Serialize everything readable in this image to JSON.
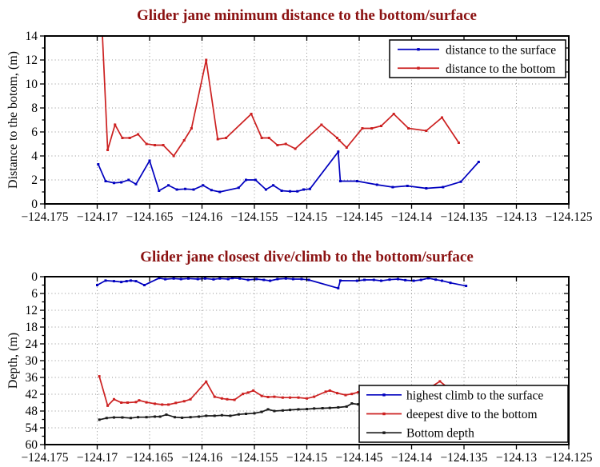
{
  "figure": {
    "background": "#ffffff",
    "title_color": "#8b1212",
    "axis_color": "#000000",
    "grid_color": "#909090"
  },
  "chart_data": [
    {
      "type": "line",
      "title": "Glider jane minimum distance to the bottom/surface",
      "ylabel": "Distance to the botom, (m)",
      "xlim": [
        -124.175,
        -124.125
      ],
      "ylim": [
        0,
        14
      ],
      "y_inverted": false,
      "grid": true,
      "y_minor": 1,
      "x_ticks": [
        -124.175,
        -124.17,
        -124.165,
        -124.16,
        -124.155,
        -124.15,
        -124.145,
        -124.14,
        -124.135,
        -124.13,
        -124.125
      ],
      "x_tick_labels": [
        "−124.175",
        "−124.17",
        "−124.165",
        "−124.16",
        "−124.155",
        "−124.15",
        "−124.145",
        "−124.14",
        "−124.135",
        "−124.13",
        "−124.125"
      ],
      "y_ticks": [
        0,
        2,
        4,
        6,
        8,
        10,
        12,
        14
      ],
      "legend_position": "top-right",
      "series": [
        {
          "name": "distance to the surface",
          "color": "#0000bf",
          "x": [
            -124.1699,
            -124.1692,
            -124.1684,
            -124.1677,
            -124.167,
            -124.1663,
            -124.165,
            -124.1641,
            -124.1632,
            -124.1624,
            -124.1616,
            -124.1608,
            -124.1599,
            -124.1591,
            -124.1583,
            -124.1565,
            -124.1558,
            -124.1549,
            -124.1539,
            -124.1532,
            -124.1524,
            -124.1516,
            -124.1509,
            -124.1503,
            -124.1497,
            -124.147,
            -124.1468,
            -124.1452,
            -124.1433,
            -124.1418,
            -124.1404,
            -124.1386,
            -124.137,
            -124.1353,
            -124.1336
          ],
          "y": [
            3.3,
            1.9,
            1.75,
            1.8,
            2.0,
            1.65,
            3.6,
            1.1,
            1.55,
            1.2,
            1.25,
            1.2,
            1.55,
            1.15,
            1.0,
            1.35,
            2.0,
            2.0,
            1.2,
            1.55,
            1.1,
            1.05,
            1.05,
            1.2,
            1.25,
            4.35,
            1.9,
            1.9,
            1.6,
            1.4,
            1.5,
            1.3,
            1.4,
            1.85,
            3.5
          ]
        },
        {
          "name": "distance to the bottom",
          "color": "#cc2020",
          "x": [
            -124.1696,
            -124.169,
            -124.1683,
            -124.1676,
            -124.1669,
            -124.1661,
            -124.1653,
            -124.1645,
            -124.1637,
            -124.1627,
            -124.1617,
            -124.161,
            -124.1596,
            -124.1585,
            -124.1577,
            -124.1553,
            -124.1543,
            -124.1536,
            -124.1528,
            -124.152,
            -124.1511,
            -124.1486,
            -124.1471,
            -124.1469,
            -124.1462,
            -124.1447,
            -124.1438,
            -124.1429,
            -124.1417,
            -124.1403,
            -124.1386,
            -124.1371,
            -124.1355
          ],
          "y": [
            16.0,
            4.5,
            6.6,
            5.5,
            5.5,
            5.8,
            5.0,
            4.9,
            4.9,
            4.0,
            5.3,
            6.3,
            12.0,
            5.4,
            5.5,
            7.5,
            5.5,
            5.5,
            4.9,
            5.0,
            4.6,
            6.6,
            5.5,
            5.3,
            4.7,
            6.3,
            6.3,
            6.5,
            7.5,
            6.3,
            6.1,
            7.2,
            5.1
          ]
        }
      ]
    },
    {
      "type": "line",
      "title": "Glider jane closest dive/climb to the bottom/surface",
      "ylabel": "Depth, (m)",
      "xlim": [
        -124.175,
        -124.125
      ],
      "ylim": [
        0,
        60
      ],
      "y_inverted": true,
      "grid": true,
      "y_minor": 3,
      "x_ticks": [
        -124.175,
        -124.17,
        -124.165,
        -124.16,
        -124.155,
        -124.15,
        -124.145,
        -124.14,
        -124.135,
        -124.13,
        -124.125
      ],
      "x_tick_labels": [
        "−124.175",
        "−124.17",
        "−124.165",
        "−124.16",
        "−124.155",
        "−124.15",
        "−124.145",
        "−124.14",
        "−124.135",
        "−124.13",
        "−124.125"
      ],
      "y_ticks": [
        0,
        6,
        12,
        18,
        24,
        30,
        36,
        42,
        48,
        54,
        60
      ],
      "legend_position": "bottom-right",
      "series": [
        {
          "name": "highest climb to the surface",
          "color": "#0000bf",
          "x": [
            -124.17,
            -124.1692,
            -124.1684,
            -124.1677,
            -124.1672,
            -124.1668,
            -124.1663,
            -124.1655,
            -124.1641,
            -124.1635,
            -124.1627,
            -124.162,
            -124.1613,
            -124.1604,
            -124.1597,
            -124.1589,
            -124.1583,
            -124.1575,
            -124.1571,
            -124.1564,
            -124.1556,
            -124.1548,
            -124.1541,
            -124.1535,
            -124.1528,
            -124.152,
            -124.1513,
            -124.1505,
            -124.1498,
            -124.147,
            -124.1468,
            -124.1452,
            -124.1445,
            -124.1436,
            -124.1429,
            -124.1421,
            -124.1413,
            -124.1406,
            -124.1398,
            -124.1391,
            -124.1384,
            -124.1377,
            -124.1371,
            -124.1363,
            -124.1348
          ],
          "y": [
            3.0,
            1.4,
            1.6,
            1.9,
            1.6,
            1.4,
            1.6,
            3.0,
            0.5,
            0.9,
            0.65,
            0.85,
            0.65,
            0.85,
            0.65,
            0.95,
            0.65,
            0.85,
            0.5,
            0.65,
            1.15,
            0.85,
            1.15,
            1.45,
            0.85,
            0.65,
            0.85,
            0.85,
            1.15,
            4.1,
            1.4,
            1.45,
            1.15,
            1.15,
            1.45,
            1.05,
            0.85,
            1.25,
            1.45,
            1.15,
            0.55,
            1.05,
            1.45,
            2.2,
            3.3
          ]
        },
        {
          "name": "deepest dive to the bottom",
          "color": "#cc2020",
          "x": [
            -124.1698,
            -124.169,
            -124.1684,
            -124.1677,
            -124.1671,
            -124.1663,
            -124.166,
            -124.1653,
            -124.1645,
            -124.1638,
            -124.1632,
            -124.1625,
            -124.1617,
            -124.1611,
            -124.1596,
            -124.1588,
            -124.1581,
            -124.1576,
            -124.1569,
            -124.1561,
            -124.1556,
            -124.1551,
            -124.1543,
            -124.1537,
            -124.1531,
            -124.1523,
            -124.1516,
            -124.1508,
            -124.15,
            -124.1493,
            -124.1482,
            -124.1478,
            -124.1471,
            -124.1463,
            -124.1457,
            -124.1451,
            -124.1442,
            -124.143,
            -124.1419,
            -124.1407,
            -124.1396,
            -124.1384,
            -124.1373,
            -124.1365,
            -124.1355
          ],
          "y": [
            35.6,
            46.1,
            43.8,
            45.0,
            45.0,
            44.8,
            44.2,
            44.9,
            45.4,
            45.7,
            45.7,
            45.1,
            44.5,
            43.8,
            37.5,
            42.9,
            43.5,
            43.8,
            44.0,
            41.9,
            41.4,
            40.7,
            42.6,
            43.0,
            42.9,
            43.2,
            43.2,
            43.2,
            43.5,
            42.9,
            41.1,
            40.7,
            41.6,
            42.3,
            41.9,
            41.3,
            41.8,
            42.0,
            41.6,
            41.8,
            41.2,
            40.0,
            37.4,
            39.8,
            41.5
          ]
        },
        {
          "name": "Bottom depth",
          "color": "#1a1a1a",
          "x": [
            -124.1698,
            -124.1691,
            -124.1684,
            -124.1676,
            -124.1668,
            -124.1661,
            -124.1653,
            -124.1645,
            -124.164,
            -124.1634,
            -124.1626,
            -124.1619,
            -124.1611,
            -124.1603,
            -124.1596,
            -124.1588,
            -124.1581,
            -124.1573,
            -124.1565,
            -124.1558,
            -124.155,
            -124.1543,
            -124.1537,
            -124.1531,
            -124.1523,
            -124.1516,
            -124.1508,
            -124.15,
            -124.1493,
            -124.1485,
            -124.1478,
            -124.147,
            -124.1462,
            -124.1457,
            -124.1451,
            -124.143,
            -124.14,
            -124.1375,
            -124.1355
          ],
          "y": [
            51.1,
            50.5,
            50.3,
            50.3,
            50.5,
            50.2,
            50.2,
            50.0,
            50.0,
            49.3,
            50.2,
            50.4,
            50.2,
            50.0,
            49.7,
            49.7,
            49.5,
            49.7,
            49.2,
            49.0,
            48.8,
            48.3,
            47.4,
            48.0,
            47.8,
            47.6,
            47.4,
            47.3,
            47.1,
            47.0,
            46.9,
            46.7,
            46.4,
            45.3,
            45.6,
            45.3,
            45.1,
            45.0,
            45.0
          ]
        }
      ]
    }
  ]
}
